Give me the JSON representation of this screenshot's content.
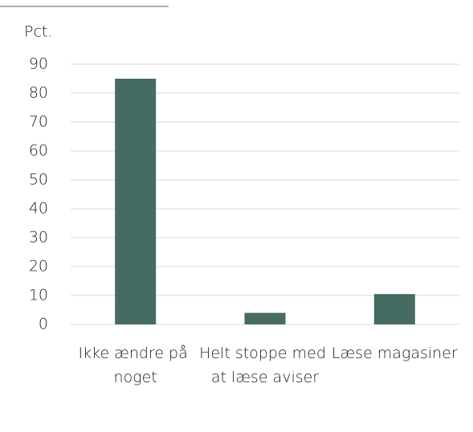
{
  "chart_data": {
    "type": "bar",
    "y_label": "Pct.",
    "categories": [
      "Ikke ændre på noget",
      "Helt stoppe med at læse aviser",
      "Læse magasiner"
    ],
    "values": [
      85,
      4,
      10.5
    ],
    "color": "#466b63",
    "ylim": [
      0,
      90
    ],
    "yticks": [
      0,
      10,
      20,
      30,
      40,
      50,
      60,
      70,
      80,
      90
    ],
    "grid": true
  }
}
